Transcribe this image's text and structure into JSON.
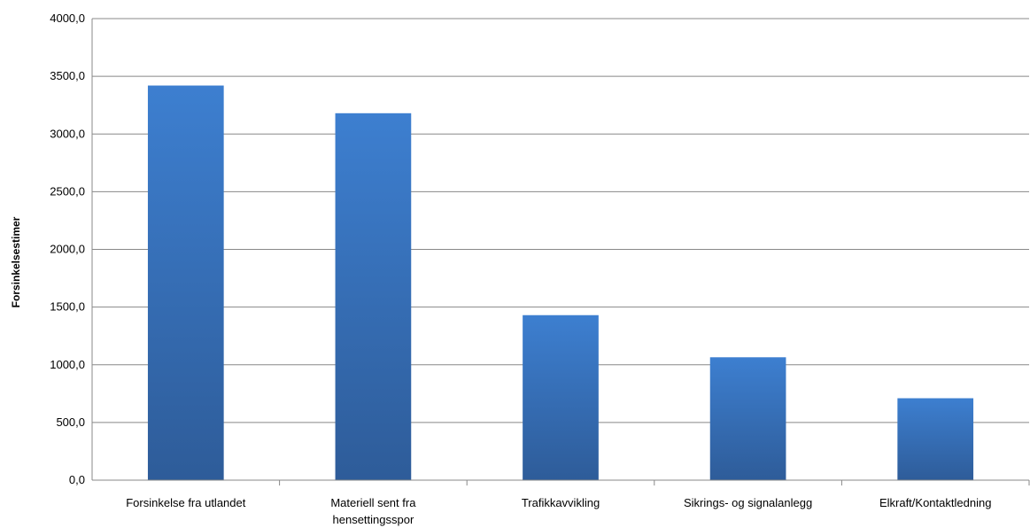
{
  "chart_data": {
    "type": "bar",
    "categories": [
      [
        "Forsinkelse fra utlandet"
      ],
      [
        "Materiell sent fra",
        "hensettingsspor"
      ],
      [
        "Trafikkavvikling"
      ],
      [
        "Sikrings- og signalanlegg"
      ],
      [
        "Elkraft/Kontaktledning"
      ]
    ],
    "values": [
      3420,
      3180,
      1430,
      1065,
      710
    ],
    "title": "",
    "xlabel": "",
    "ylabel": "Forsinkelsestimer",
    "ylim": [
      0,
      4000
    ],
    "yticks": [
      {
        "value": 0,
        "label": "0,0"
      },
      {
        "value": 500,
        "label": "500,0"
      },
      {
        "value": 1000,
        "label": "1000,0"
      },
      {
        "value": 1500,
        "label": "1500,0"
      },
      {
        "value": 2000,
        "label": "2000,0"
      },
      {
        "value": 2500,
        "label": "2500,0"
      },
      {
        "value": 3000,
        "label": "3000,0"
      },
      {
        "value": 3500,
        "label": "3500,0"
      },
      {
        "value": 4000,
        "label": "4000,0"
      }
    ],
    "grid": true,
    "legend": "none",
    "colors": {
      "bar_top": "#3d7fd0",
      "bar_bottom": "#2e5c99",
      "grid": "#888888"
    }
  }
}
